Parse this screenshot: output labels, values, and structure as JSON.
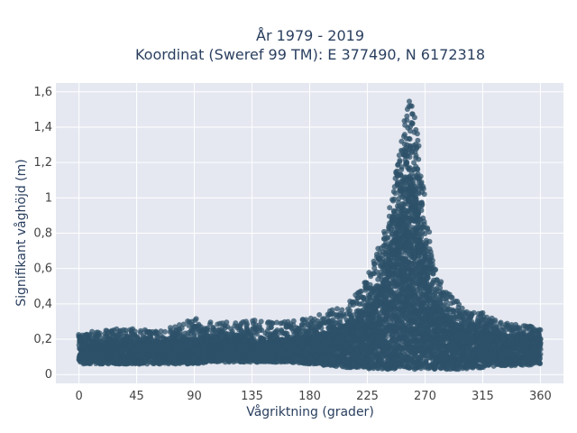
{
  "chart_data": {
    "type": "scatter",
    "title_line1": "År 1979 - 2019",
    "title_line2": "Koordinat (Sweref 99 TM): E 377490, N 6172318",
    "xlabel": "Vågriktning (grader)",
    "ylabel": "Signifikant våghöjd (m)",
    "xlim": [
      -18,
      378
    ],
    "ylim": [
      -0.05,
      1.65
    ],
    "x_ticks": [
      0,
      45,
      90,
      135,
      180,
      225,
      270,
      315,
      360
    ],
    "x_tick_labels": [
      "0",
      "45",
      "90",
      "135",
      "180",
      "225",
      "270",
      "315",
      "360"
    ],
    "y_ticks": [
      0,
      0.2,
      0.4,
      0.6,
      0.8,
      1.0,
      1.2,
      1.4,
      1.6
    ],
    "y_tick_labels": [
      "0",
      "0,2",
      "0,4",
      "0,6",
      "0,8",
      "1",
      "1,2",
      "1,4",
      "1,6"
    ],
    "grid": true,
    "marker_color": "#2e5169",
    "plot_bg": "#e5e8f0",
    "series": [
      {
        "envelope_direction_deg": [
          0,
          15,
          30,
          45,
          60,
          75,
          90,
          105,
          120,
          135,
          150,
          165,
          180,
          195,
          210,
          220,
          230,
          240,
          245,
          250,
          255,
          258,
          260,
          262,
          265,
          270,
          275,
          280,
          290,
          300,
          315,
          330,
          345,
          360
        ],
        "envelope_min_height_m": [
          0.06,
          0.06,
          0.06,
          0.06,
          0.06,
          0.06,
          0.06,
          0.07,
          0.07,
          0.07,
          0.07,
          0.07,
          0.06,
          0.05,
          0.04,
          0.04,
          0.03,
          0.03,
          0.03,
          0.03,
          0.03,
          0.03,
          0.03,
          0.03,
          0.03,
          0.03,
          0.03,
          0.03,
          0.03,
          0.03,
          0.04,
          0.05,
          0.05,
          0.06
        ],
        "envelope_max_height_m": [
          0.24,
          0.25,
          0.26,
          0.26,
          0.25,
          0.27,
          0.32,
          0.3,
          0.3,
          0.31,
          0.3,
          0.3,
          0.32,
          0.36,
          0.42,
          0.48,
          0.65,
          0.85,
          1.05,
          1.28,
          1.48,
          1.56,
          1.55,
          1.5,
          1.3,
          1.0,
          0.68,
          0.55,
          0.45,
          0.38,
          0.35,
          0.3,
          0.29,
          0.26
        ],
        "core_max_height_m": [
          0.18,
          0.18,
          0.18,
          0.18,
          0.18,
          0.19,
          0.2,
          0.2,
          0.2,
          0.2,
          0.2,
          0.2,
          0.21,
          0.24,
          0.28,
          0.32,
          0.4,
          0.55,
          0.7,
          0.88,
          1.0,
          1.05,
          1.05,
          1.0,
          0.88,
          0.62,
          0.42,
          0.36,
          0.3,
          0.26,
          0.24,
          0.22,
          0.21,
          0.2
        ]
      }
    ]
  }
}
